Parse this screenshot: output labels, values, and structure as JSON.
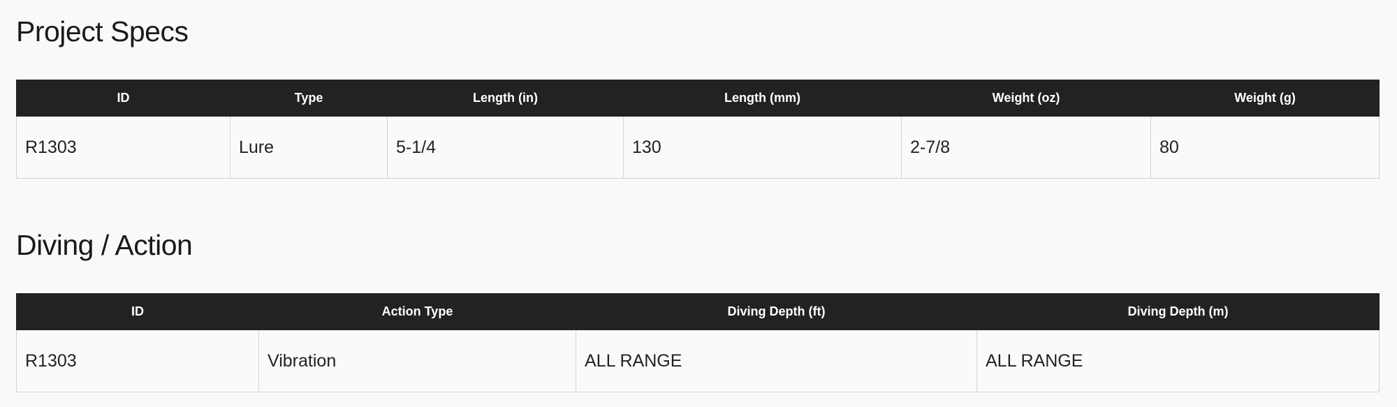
{
  "sections": [
    {
      "title": "Project Specs",
      "headers": [
        "ID",
        "Type",
        "Length (in)",
        "Length (mm)",
        "Weight (oz)",
        "Weight (g)"
      ],
      "rows": [
        [
          "R1303",
          "Lure",
          "5-1/4",
          "130",
          "2-7/8",
          "80"
        ]
      ]
    },
    {
      "title": "Diving / Action",
      "headers": [
        "ID",
        "Action Type",
        "Diving Depth (ft)",
        "Diving Depth (m)"
      ],
      "rows": [
        [
          "R1303",
          "Vibration",
          "ALL RANGE",
          "ALL RANGE"
        ]
      ]
    }
  ]
}
